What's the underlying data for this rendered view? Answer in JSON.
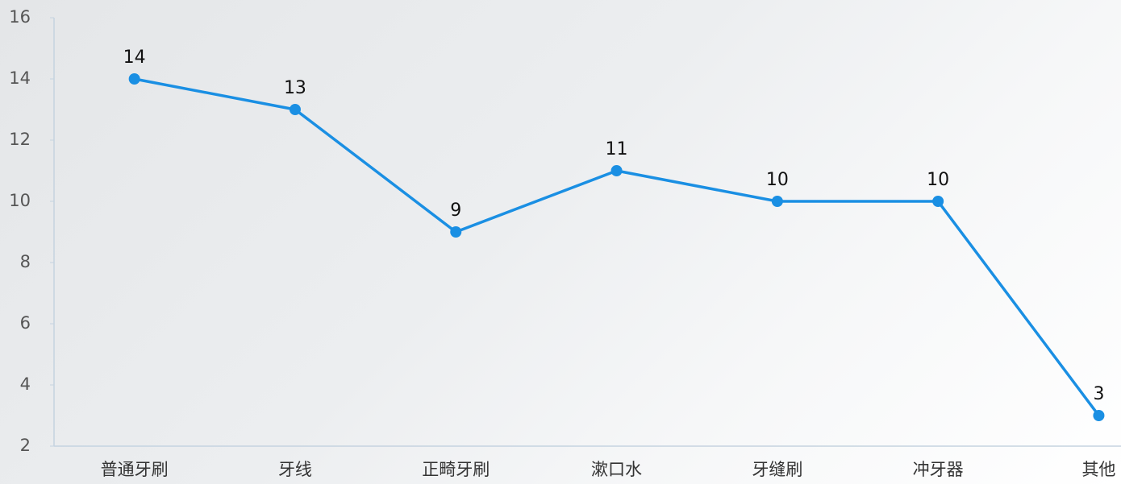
{
  "chart_data": {
    "type": "line",
    "categories": [
      "普通牙刷",
      "牙线",
      "正畸牙刷",
      "漱口水",
      "牙缝刷",
      "冲牙器",
      "其他"
    ],
    "values": [
      14,
      13,
      9,
      11,
      10,
      10,
      3
    ],
    "color": "#1a8fe3",
    "ylim": [
      2,
      16
    ],
    "yticks": [
      2,
      4,
      6,
      8,
      10,
      12,
      14,
      16
    ],
    "grid": false
  }
}
